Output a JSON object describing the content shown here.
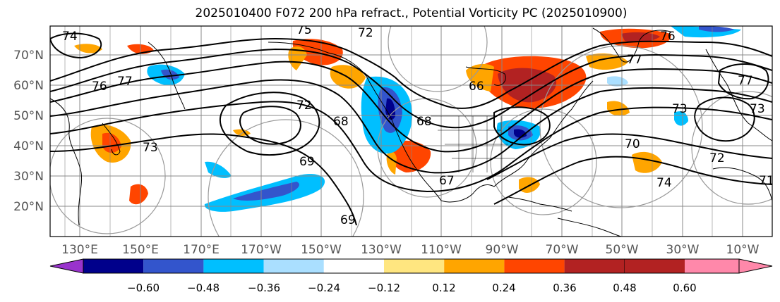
{
  "title": "2025010400 F072 200 hPa refract., Potential Vorticity PC (2025010900)",
  "lat_labels": [
    "70°N",
    "60°N",
    "50°N",
    "40°N",
    "30°N",
    "20°N"
  ],
  "lon_labels": [
    "130°E",
    "150°E",
    "170°E",
    "170°W",
    "150°W",
    "130°W",
    "110°W",
    "90°W",
    "70°W",
    "50°W",
    "30°W",
    "10°W"
  ],
  "colorbar": {
    "ticks": [
      "−0.60",
      "−0.48",
      "−0.36",
      "−0.24",
      "−0.12",
      "0.12",
      "0.24",
      "0.36",
      "0.48",
      "0.60"
    ],
    "colors": [
      "#9933cc",
      "#00008b",
      "#3355cc",
      "#00bfff",
      "#aadfff",
      "#ffffff",
      "#ffe680",
      "#ffa500",
      "#ff4500",
      "#b22222",
      "#ff88aa"
    ]
  },
  "contour_labels": [
    "74",
    "75",
    "72",
    "76",
    "77",
    "76",
    "77",
    "77",
    "72",
    "73",
    "73",
    "68",
    "69",
    "68",
    "66",
    "69",
    "67",
    "70",
    "73",
    "72",
    "74",
    "71"
  ],
  "colors": {
    "contour": "#000000",
    "grid": "#888888",
    "range_ring": "#999999"
  }
}
